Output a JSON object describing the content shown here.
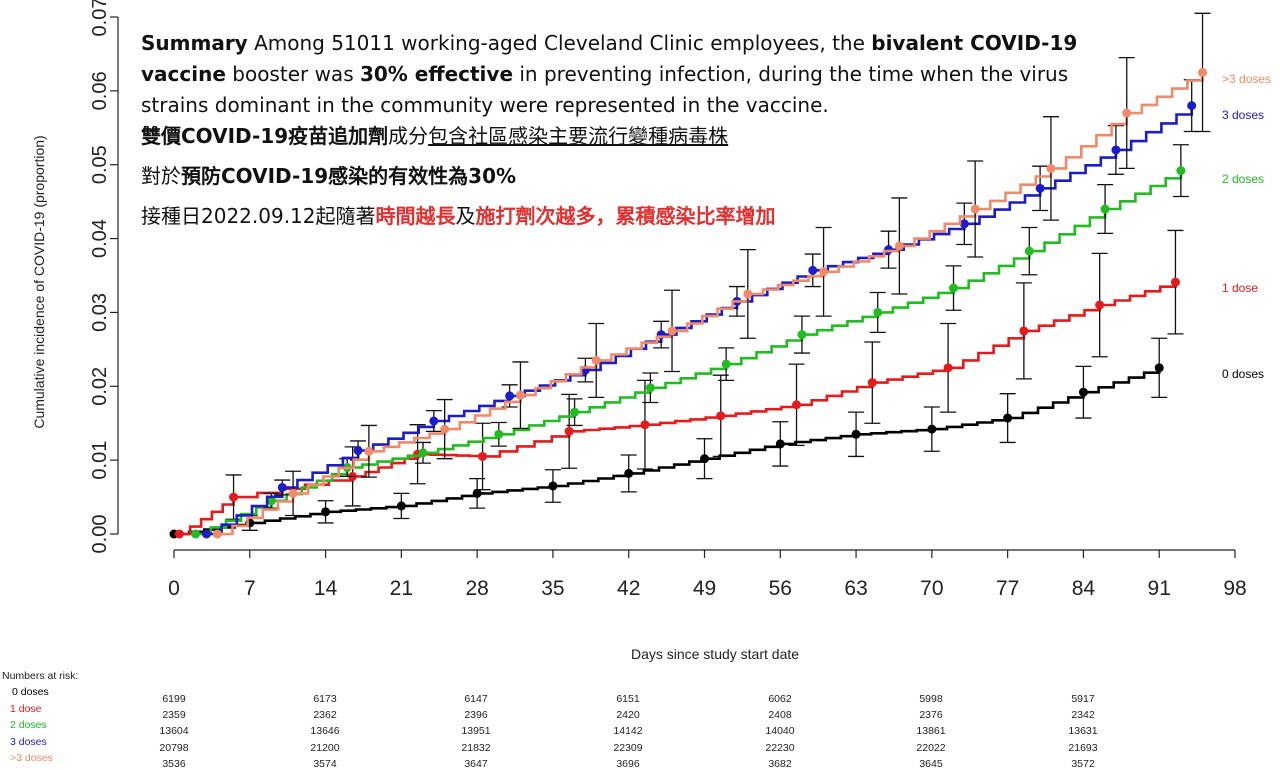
{
  "annotation": {
    "l1_a": "Summary",
    "l1_b": " Among 51011 working-aged Cleveland Clinic employees, the ",
    "l1_c": "bivalent COVID-19",
    "l2_a": "vaccine",
    "l2_b": " booster was ",
    "l2_c": "30% effective",
    "l2_d": " in preventing infection, during the time when the virus",
    "l3": "strains dominant in the community were represented in the vaccine.",
    "l4_a": "雙價COVID-19疫苗追加劑",
    "l4_b": "成分",
    "l4_c": "包含社區感染主要流行變種病毒株",
    "l5_a": "對於",
    "l5_b": "預防COVID-19感染的有效性為30%",
    "l6_a": "接種日2022.09.12起隨著",
    "l6_b": "時間越長",
    "l6_c": "及",
    "l6_d": "施打劑次越多，累積感染比率增加"
  },
  "chart_data": {
    "type": "line",
    "xlabel": "Days since study start date",
    "ylabel": "Cumulative incidence of COVID-19 (proportion)",
    "xticks": [
      0,
      7,
      14,
      21,
      28,
      35,
      42,
      49,
      56,
      63,
      70,
      77,
      84,
      91,
      98
    ],
    "yticks": [
      "0.00",
      "0.01",
      "0.02",
      "0.03",
      "0.04",
      "0.05",
      "0.06",
      "0.07"
    ],
    "xlim": [
      0,
      98
    ],
    "ylim": [
      0,
      0.07
    ],
    "grid": false,
    "series": [
      {
        "name": "0 doses",
        "color": "#000000",
        "x": [
          0,
          7,
          14,
          21,
          28,
          35,
          42,
          49,
          56,
          63,
          70,
          77,
          84,
          91
        ],
        "y": [
          0.0,
          0.0015,
          0.003,
          0.0038,
          0.0055,
          0.0065,
          0.0082,
          0.0102,
          0.0122,
          0.0135,
          0.0142,
          0.0157,
          0.0192,
          0.0225
        ],
        "err": [
          0,
          0.001,
          0.0015,
          0.0017,
          0.002,
          0.0022,
          0.0025,
          0.0027,
          0.003,
          0.003,
          0.003,
          0.0033,
          0.0035,
          0.004
        ]
      },
      {
        "name": "1 dose",
        "color": "#e41a1c",
        "x": [
          0.5,
          5.5,
          16.5,
          22.5,
          28.5,
          36.5,
          43.5,
          50.5,
          57.5,
          64.5,
          71.5,
          78.5,
          85.5,
          92.5
        ],
        "y": [
          0.0,
          0.005,
          0.0078,
          0.0108,
          0.0105,
          0.0139,
          0.0148,
          0.016,
          0.0175,
          0.0205,
          0.0225,
          0.0275,
          0.031,
          0.0341
        ],
        "err": [
          0,
          0.003,
          0.004,
          0.004,
          0.0045,
          0.005,
          0.006,
          0.0055,
          0.0055,
          0.0055,
          0.006,
          0.0065,
          0.007,
          0.007
        ]
      },
      {
        "name": "2 doses",
        "color": "#22bb22",
        "x": [
          2,
          9,
          16,
          23,
          30,
          37,
          44,
          51,
          58,
          65,
          72,
          79,
          86,
          93
        ],
        "y": [
          0.0,
          0.0045,
          0.009,
          0.011,
          0.0135,
          0.0165,
          0.0198,
          0.023,
          0.027,
          0.03,
          0.0333,
          0.0383,
          0.044,
          0.0492
        ],
        "err": [
          0,
          0.001,
          0.0012,
          0.0014,
          0.0016,
          0.0018,
          0.002,
          0.0022,
          0.0025,
          0.0027,
          0.003,
          0.0032,
          0.0033,
          0.0035
        ]
      },
      {
        "name": "3 doses",
        "color": "#1c1cc8",
        "x": [
          3,
          10,
          17,
          24,
          31,
          38,
          45,
          52,
          59,
          66,
          73,
          80,
          87,
          94
        ],
        "y": [
          0.0,
          0.0063,
          0.0113,
          0.0153,
          0.0187,
          0.0222,
          0.027,
          0.0315,
          0.0357,
          0.0385,
          0.042,
          0.0468,
          0.052,
          0.058
        ],
        "err": [
          0,
          0.001,
          0.0013,
          0.0014,
          0.0015,
          0.0016,
          0.0018,
          0.002,
          0.0022,
          0.0025,
          0.0028,
          0.003,
          0.0033,
          0.0035
        ]
      },
      {
        "name": ">3 doses",
        "color": "#f08a68",
        "x": [
          4,
          11,
          18,
          25,
          32,
          39,
          46,
          53,
          60,
          67,
          74,
          81,
          88,
          95
        ],
        "y": [
          0.0,
          0.0055,
          0.0112,
          0.0142,
          0.0188,
          0.0235,
          0.0275,
          0.0325,
          0.0355,
          0.039,
          0.044,
          0.0495,
          0.057,
          0.0625
        ],
        "err": [
          0,
          0.003,
          0.0035,
          0.004,
          0.0045,
          0.005,
          0.0055,
          0.006,
          0.006,
          0.0065,
          0.0065,
          0.007,
          0.0075,
          0.008
        ]
      }
    ]
  },
  "risk_table": {
    "title": "Numbers at risk:",
    "rows": [
      {
        "label": "0 doses",
        "color": "#000000",
        "values": [
          "6199",
          "6173",
          "6147",
          "6151",
          "6062",
          "5998",
          "5917"
        ]
      },
      {
        "label": "1 dose",
        "color": "#e41a1c",
        "values": [
          "2359",
          "2362",
          "2396",
          "2420",
          "2408",
          "2376",
          "2342"
        ]
      },
      {
        "label": "2 doses",
        "color": "#22bb22",
        "values": [
          "13604",
          "13646",
          "13951",
          "14142",
          "14040",
          "13861",
          "13631"
        ]
      },
      {
        "label": "3 doses",
        "color": "#1c1cc8",
        "values": [
          "20798",
          "21200",
          "21832",
          "22309",
          "22230",
          "22022",
          "21693"
        ]
      },
      {
        "label": ">3 doses",
        "color": "#f08a68",
        "values": [
          "3536",
          "3574",
          "3647",
          "3696",
          "3682",
          "3645",
          "3572"
        ]
      }
    ]
  }
}
